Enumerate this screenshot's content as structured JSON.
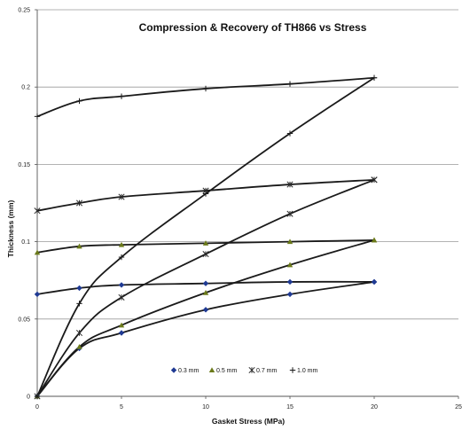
{
  "chart_data": {
    "type": "scatter",
    "title": "Compression & Recovery of TH866 vs Stress",
    "xlabel": "Gasket Stress (MPa)",
    "ylabel": "Thickness (mm)",
    "xlim": [
      0,
      25
    ],
    "ylim": [
      0,
      0.25
    ],
    "x_ticks": [
      "0",
      "5",
      "10",
      "15",
      "20",
      "25"
    ],
    "y_ticks": [
      "0",
      "0.05",
      "0.1",
      "0.15",
      "0.2",
      "0.25"
    ],
    "grid": "horizontal",
    "legend_position": "bottom-center",
    "series": [
      {
        "name": "0.3 mm",
        "marker": "diamond",
        "marker_color": "#1f3a93",
        "compression": [
          [
            0,
            0
          ],
          [
            2.5,
            0.031
          ],
          [
            5,
            0.041
          ],
          [
            10,
            0.056
          ],
          [
            15,
            0.066
          ],
          [
            20,
            0.074
          ]
        ],
        "recovery": [
          [
            20,
            0.074
          ],
          [
            15,
            0.074
          ],
          [
            10,
            0.073
          ],
          [
            5,
            0.072
          ],
          [
            2.5,
            0.07
          ],
          [
            0,
            0.066
          ]
        ]
      },
      {
        "name": "0.5 mm",
        "marker": "triangle",
        "marker_color": "#6b7a1a",
        "compression": [
          [
            0,
            0
          ],
          [
            2.5,
            0.032
          ],
          [
            5,
            0.046
          ],
          [
            10,
            0.067
          ],
          [
            15,
            0.085
          ],
          [
            20,
            0.101
          ]
        ],
        "recovery": [
          [
            20,
            0.101
          ],
          [
            15,
            0.1
          ],
          [
            10,
            0.099
          ],
          [
            5,
            0.098
          ],
          [
            2.5,
            0.097
          ],
          [
            0,
            0.093
          ]
        ]
      },
      {
        "name": "0.7 mm",
        "marker": "star",
        "marker_color": "#2a2a2a",
        "compression": [
          [
            0,
            0
          ],
          [
            2.5,
            0.041
          ],
          [
            5,
            0.064
          ],
          [
            10,
            0.092
          ],
          [
            15,
            0.118
          ],
          [
            20,
            0.14
          ]
        ],
        "recovery": [
          [
            20,
            0.14
          ],
          [
            15,
            0.137
          ],
          [
            10,
            0.133
          ],
          [
            5,
            0.129
          ],
          [
            2.5,
            0.125
          ],
          [
            0,
            0.12
          ]
        ]
      },
      {
        "name": "1.0 mm",
        "marker": "plus",
        "marker_color": "#1a1a1a",
        "compression": [
          [
            0,
            0
          ],
          [
            2.5,
            0.06
          ],
          [
            5,
            0.09
          ],
          [
            10,
            0.131
          ],
          [
            15,
            0.17
          ],
          [
            20,
            0.206
          ]
        ],
        "recovery": [
          [
            20,
            0.206
          ],
          [
            15,
            0.202
          ],
          [
            10,
            0.199
          ],
          [
            5,
            0.194
          ],
          [
            2.5,
            0.191
          ],
          [
            0,
            0.181
          ]
        ]
      }
    ]
  }
}
